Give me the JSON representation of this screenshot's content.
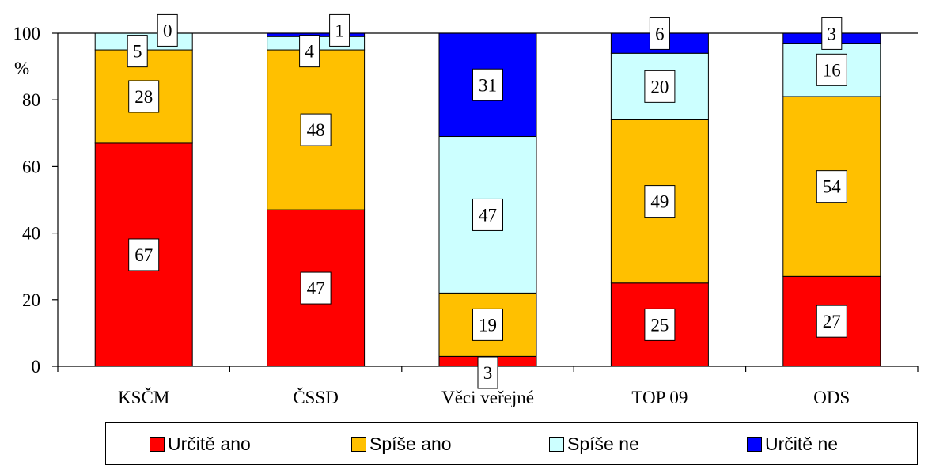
{
  "chart_data": {
    "type": "bar",
    "stacked": true,
    "ylabel": "%",
    "ylim": [
      0,
      100
    ],
    "yticks": [
      0,
      20,
      40,
      60,
      80,
      100
    ],
    "categories": [
      "KSČM",
      "ČSSD",
      "Věci veřejné",
      "TOP 09",
      "ODS"
    ],
    "series": [
      {
        "name": "Určitě ano",
        "color": "#ff0000",
        "values": [
          67,
          47,
          3,
          25,
          27
        ]
      },
      {
        "name": "Spíše ano",
        "color": "#ffc000",
        "values": [
          28,
          48,
          19,
          49,
          54
        ]
      },
      {
        "name": "Spíše ne",
        "color": "#ccffff",
        "values": [
          5,
          4,
          47,
          20,
          16
        ]
      },
      {
        "name": "Určitě ne",
        "color": "#0000ff",
        "values": [
          0,
          1,
          31,
          6,
          3
        ]
      }
    ],
    "grid": false,
    "legend_position": "bottom"
  }
}
